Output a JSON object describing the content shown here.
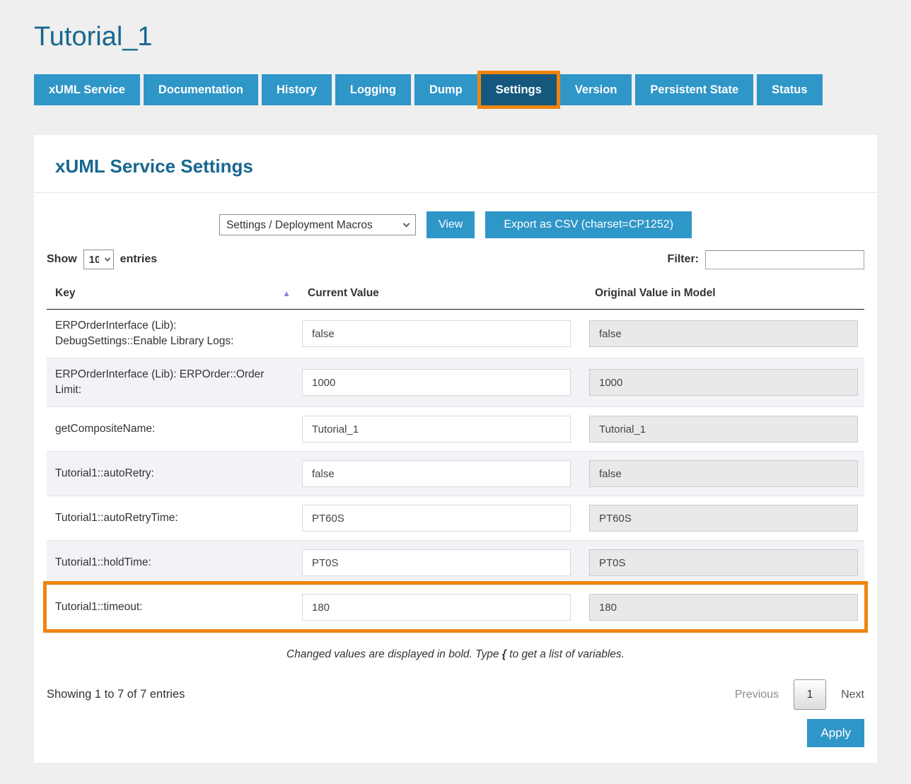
{
  "page": {
    "title": "Tutorial_1"
  },
  "tabs": [
    {
      "label": "xUML Service",
      "active": false
    },
    {
      "label": "Documentation",
      "active": false
    },
    {
      "label": "History",
      "active": false
    },
    {
      "label": "Logging",
      "active": false
    },
    {
      "label": "Dump",
      "active": false
    },
    {
      "label": "Settings",
      "active": true
    },
    {
      "label": "Version",
      "active": false
    },
    {
      "label": "Persistent State",
      "active": false
    },
    {
      "label": "Status",
      "active": false
    }
  ],
  "panel": {
    "heading": "xUML Service Settings",
    "toolbar": {
      "macro_select_value": "Settings / Deployment Macros",
      "view_button": "View",
      "export_button": "Export as CSV (charset=CP1252)"
    },
    "length_control": {
      "show_label": "Show",
      "value": "10",
      "entries_label": "entries"
    },
    "filter": {
      "label": "Filter:",
      "value": ""
    },
    "table": {
      "columns": [
        "Key",
        "Current Value",
        "Original Value in Model"
      ],
      "sort_icon": "▲",
      "rows": [
        {
          "key": "ERPOrderInterface (Lib): DebugSettings::Enable Library Logs:",
          "current": "false",
          "original": "false",
          "highlight": false
        },
        {
          "key": "ERPOrderInterface (Lib): ERPOrder::Order Limit:",
          "current": "1000",
          "original": "1000",
          "highlight": false
        },
        {
          "key": "getCompositeName:",
          "current": "Tutorial_1",
          "original": "Tutorial_1",
          "highlight": false
        },
        {
          "key": "Tutorial1::autoRetry:",
          "current": "false",
          "original": "false",
          "highlight": false
        },
        {
          "key": "Tutorial1::autoRetryTime:",
          "current": "PT60S",
          "original": "PT60S",
          "highlight": false
        },
        {
          "key": "Tutorial1::holdTime:",
          "current": "PT0S",
          "original": "PT0S",
          "highlight": false
        },
        {
          "key": "Tutorial1::timeout:",
          "current": "180",
          "original": "180",
          "highlight": true
        }
      ]
    },
    "note": {
      "before": "Changed values are displayed in bold. Type ",
      "brace": "{",
      "after": " to get a list of variables."
    },
    "footer": {
      "showing": "Showing 1 to 7 of 7 entries",
      "previous": "Previous",
      "page": "1",
      "next": "Next",
      "apply": "Apply"
    }
  },
  "colors": {
    "tab_blue": "#2f96c8",
    "active_tab_blue": "#15587d",
    "highlight_orange": "#ee8511",
    "heading_blue": "#17678f",
    "stripe_row": "#f1f3f7",
    "sort_arrow": "#8487e0"
  }
}
